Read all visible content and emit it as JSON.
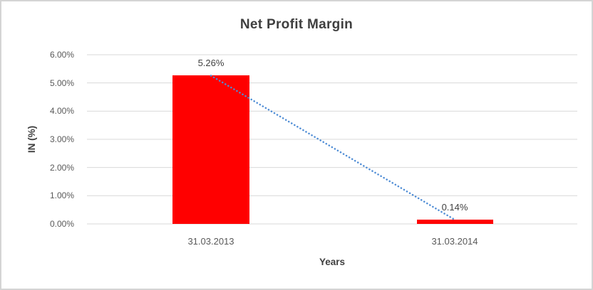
{
  "chart_data": {
    "type": "bar",
    "title": "Net Profit Margin",
    "xlabel": "Years",
    "ylabel": "IN (%)",
    "categories": [
      "31.03.2013",
      "31.03.2014"
    ],
    "values": [
      5.26,
      0.14
    ],
    "data_labels": [
      "5.26%",
      "0.14%"
    ],
    "ytick_labels": [
      "6.00%",
      "5.00%",
      "4.00%",
      "3.00%",
      "2.00%",
      "1.00%",
      "0.00%"
    ],
    "ylim": [
      0,
      6
    ],
    "grid": true,
    "legend": "none",
    "bar_color": "#ff0000",
    "trendline": {
      "style": "dotted",
      "color": "#4e8cd5",
      "from_value": 5.26,
      "to_value": 0.14
    },
    "gridline_color": "#d9d9d9",
    "text_color_dark": "#404040",
    "text_color_ticks": "#595959",
    "border_color": "#d4d4d4"
  }
}
